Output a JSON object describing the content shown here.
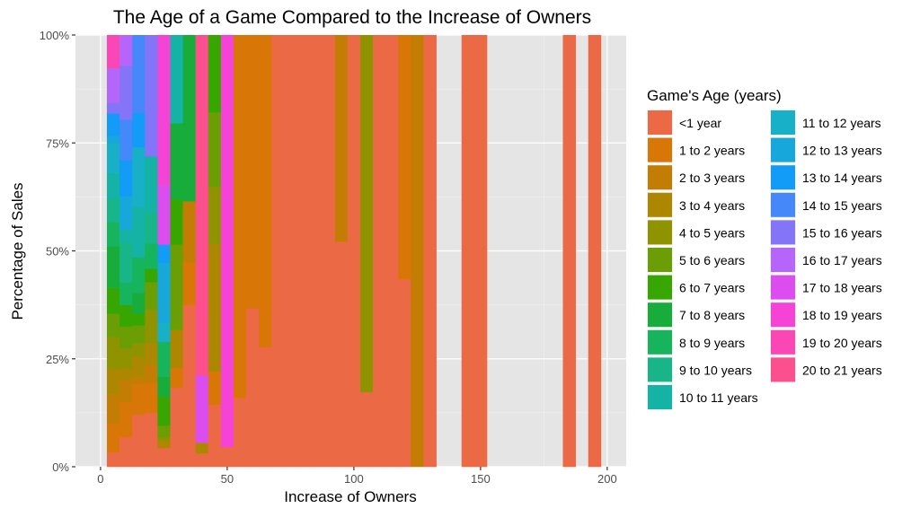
{
  "chart_data": {
    "type": "bar",
    "stacking": "fill",
    "title": "The Age of a Game Compared to the Increase of Owners",
    "xlabel": "Increase of Owners",
    "ylabel": "Percentage of Sales",
    "xlim": [
      -9.9,
      207.5
    ],
    "ylim": [
      0,
      1
    ],
    "binwidth": 5,
    "x_ticks": [
      0,
      50,
      100,
      150,
      200
    ],
    "x_tick_labels": [
      "0",
      "50",
      "100",
      "150",
      "200"
    ],
    "y_ticks": [
      0,
      0.25,
      0.5,
      0.75,
      1
    ],
    "y_tick_labels": [
      "0%",
      "25%",
      "50%",
      "75%",
      "100%"
    ],
    "grid": true,
    "panel_background": "#E5E5E5",
    "legend": {
      "title": "Game's Age (years)",
      "position": "right",
      "categories": [
        "<1 year",
        "1 to 2 years",
        "2 to 3 years",
        "3 to 4 years",
        "4 to 5 years",
        "5 to 6 years",
        "6 to 7 years",
        "7 to 8 years",
        "8 to 9 years",
        "9 to 10 years",
        "10 to 11 years",
        "11 to 12 years",
        "12 to 13 years",
        "13 to 14 years",
        "14 to 15 years",
        "15 to 16 years",
        "16 to 17 years",
        "17 to 18 years",
        "18 to 19 years",
        "19 to 20 years",
        "20 to 21 years"
      ],
      "colors": [
        "#EC6946",
        "#D97608",
        "#C47D04",
        "#AD8700",
        "#8F9300",
        "#6B9D05",
        "#37A600",
        "#18AD3B",
        "#16B45C",
        "#18B589",
        "#14B3A6",
        "#18B0C6",
        "#17A7DB",
        "#129BF7",
        "#4488FA",
        "#8474F8",
        "#B565FA",
        "#DC4DEF",
        "#F543D5",
        "#FB47B5",
        "#FC4F8E"
      ]
    },
    "bins": [
      {
        "x": 5,
        "segments": [
          [
            0,
            3.3
          ],
          [
            1,
            6.7
          ],
          [
            2,
            6.7
          ],
          [
            3,
            6.0
          ],
          [
            4,
            7.3
          ],
          [
            5,
            5.4
          ],
          [
            6,
            6.0
          ],
          [
            7,
            9.6
          ],
          [
            8,
            5.6
          ],
          [
            9,
            5.4
          ],
          [
            10,
            6.0
          ],
          [
            11,
            6.9
          ],
          [
            12,
            1.7
          ],
          [
            13,
            5.2
          ],
          [
            15,
            2.5
          ],
          [
            16,
            7.9
          ],
          [
            19,
            7.7
          ]
        ]
      },
      {
        "x": 10,
        "segments": [
          [
            0,
            6.9
          ],
          [
            1,
            8.1
          ],
          [
            2,
            5.2
          ],
          [
            3,
            2.7
          ],
          [
            4,
            4.6
          ],
          [
            5,
            5.0
          ],
          [
            6,
            5.0
          ],
          [
            8,
            5.2
          ],
          [
            9,
            9.4
          ],
          [
            10,
            2.9
          ],
          [
            12,
            7.7
          ],
          [
            13,
            8.3
          ],
          [
            14,
            9.4
          ],
          [
            15,
            12.5
          ],
          [
            16,
            7.1
          ]
        ]
      },
      {
        "x": 15,
        "segments": [
          [
            0,
            12.1
          ],
          [
            1,
            7.1
          ],
          [
            2,
            1.7
          ],
          [
            3,
            4.6
          ],
          [
            4,
            3.1
          ],
          [
            5,
            4.2
          ],
          [
            6,
            2.7
          ],
          [
            7,
            4.8
          ],
          [
            8,
            8.3
          ],
          [
            10,
            11.7
          ],
          [
            11,
            13.8
          ],
          [
            13,
            7.9
          ],
          [
            14,
            18.1
          ]
        ]
      },
      {
        "x": 20,
        "segments": [
          [
            0,
            12.5
          ],
          [
            1,
            6.9
          ],
          [
            2,
            4.2
          ],
          [
            3,
            5.0
          ],
          [
            4,
            7.9
          ],
          [
            5,
            6.3
          ],
          [
            6,
            3.1
          ],
          [
            8,
            5.8
          ],
          [
            9,
            7.1
          ],
          [
            10,
            13.1
          ],
          [
            15,
            28.1
          ]
        ]
      },
      {
        "x": 25,
        "segments": [
          [
            0,
            4.4
          ],
          [
            3,
            1.7
          ],
          [
            4,
            0.8
          ],
          [
            5,
            2.7
          ],
          [
            6,
            6.7
          ],
          [
            7,
            4.6
          ],
          [
            8,
            8.1
          ],
          [
            11,
            4.4
          ],
          [
            12,
            14.0
          ],
          [
            13,
            4.2
          ],
          [
            17,
            13.8
          ],
          [
            18,
            34.8
          ]
        ]
      },
      {
        "x": 30,
        "segments": [
          [
            0,
            18.3
          ],
          [
            1,
            4.6
          ],
          [
            3,
            8.8
          ],
          [
            5,
            19.8
          ],
          [
            6,
            10.4
          ],
          [
            7,
            17.7
          ],
          [
            10,
            20.4
          ]
        ]
      },
      {
        "x": 35,
        "segments": [
          [
            0,
            37.5
          ],
          [
            1,
            9.8
          ],
          [
            2,
            14.2
          ],
          [
            7,
            38.5
          ]
        ]
      },
      {
        "x": 40,
        "segments": [
          [
            0,
            3.1
          ],
          [
            3,
            2.5
          ],
          [
            17,
            15.6
          ],
          [
            20,
            78.8
          ]
        ]
      },
      {
        "x": 45,
        "segments": [
          [
            0,
            14.4
          ],
          [
            1,
            7.7
          ],
          [
            3,
            29.4
          ],
          [
            4,
            13.5
          ],
          [
            5,
            17.1
          ],
          [
            6,
            17.9
          ]
        ]
      },
      {
        "x": 50,
        "segments": [
          [
            0,
            4.6
          ],
          [
            18,
            95.4
          ]
        ]
      },
      {
        "x": 55,
        "segments": [
          [
            0,
            16.0
          ],
          [
            1,
            84.0
          ]
        ]
      },
      {
        "x": 60,
        "segments": [
          [
            0,
            36.7
          ],
          [
            1,
            63.3
          ]
        ]
      },
      {
        "x": 65,
        "segments": [
          [
            0,
            27.7
          ],
          [
            1,
            72.3
          ]
        ]
      },
      {
        "x": 70,
        "segments": [
          [
            0,
            100
          ]
        ]
      },
      {
        "x": 75,
        "segments": [
          [
            0,
            100
          ]
        ]
      },
      {
        "x": 80,
        "segments": [
          [
            0,
            100
          ]
        ]
      },
      {
        "x": 85,
        "segments": [
          [
            0,
            100
          ]
        ]
      },
      {
        "x": 90,
        "segments": [
          [
            0,
            100
          ]
        ]
      },
      {
        "x": 95,
        "segments": [
          [
            0,
            52.1
          ],
          [
            2,
            47.9
          ]
        ]
      },
      {
        "x": 100,
        "segments": [
          [
            0,
            100
          ]
        ]
      },
      {
        "x": 105,
        "segments": [
          [
            0,
            17.3
          ],
          [
            4,
            82.7
          ]
        ]
      },
      {
        "x": 110,
        "segments": [
          [
            0,
            100
          ]
        ]
      },
      {
        "x": 115,
        "segments": [
          [
            0,
            100
          ]
        ]
      },
      {
        "x": 120,
        "segments": [
          [
            0,
            43.5
          ],
          [
            1,
            56.5
          ]
        ]
      },
      {
        "x": 125,
        "segments": [
          [
            2,
            100
          ]
        ]
      },
      {
        "x": 130,
        "segments": [
          [
            0,
            100
          ]
        ]
      },
      {
        "x": 145,
        "segments": [
          [
            0,
            100
          ]
        ]
      },
      {
        "x": 150,
        "segments": [
          [
            0,
            100
          ]
        ]
      },
      {
        "x": 185,
        "segments": [
          [
            0,
            100
          ]
        ]
      },
      {
        "x": 195,
        "segments": [
          [
            0,
            100
          ]
        ]
      }
    ]
  }
}
